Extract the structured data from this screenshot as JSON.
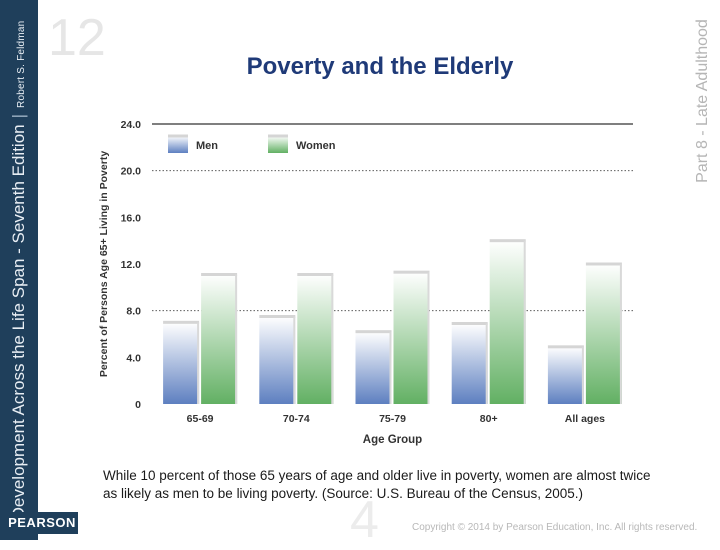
{
  "slide": {
    "title": "Poverty and the Elderly",
    "caption": "While 10 percent of those 65 years of age and older live in poverty, women are almost twice as likely as men to be living poverty. (Source: U.S. Bureau of the Census, 2005.)",
    "copyright": "Copyright © 2014 by Pearson Education, Inc. All rights reserved.",
    "book_title": "Development Across the Life Span - Seventh Edition",
    "author": "Robert S. Feldman",
    "part_label": "Part 8 - Late Adulthood",
    "publisher": "PEARSON",
    "chapter_number": "12"
  },
  "chart_data": {
    "type": "bar",
    "title": "",
    "xlabel": "Age Group",
    "ylabel": "Percent of Persons Age 65+ Living in Poverty",
    "ylim": [
      0,
      24
    ],
    "yticks": [
      0,
      4,
      8,
      12,
      16,
      20,
      24
    ],
    "ytick_labels": [
      "0",
      "4.0",
      "8.0",
      "12.0",
      "16.0",
      "20.0",
      "24.0"
    ],
    "categories": [
      "65-69",
      "70-74",
      "75-79",
      "80+",
      "All ages"
    ],
    "series": [
      {
        "name": "Men",
        "values": [
          7.0,
          7.5,
          6.2,
          6.9,
          4.9
        ]
      },
      {
        "name": "Women",
        "values": [
          11.1,
          11.1,
          11.3,
          14.0,
          12.0
        ]
      }
    ],
    "reference_lines": [
      20.0,
      8.0
    ],
    "legend_position": "top-left",
    "colors": {
      "men": "#a7b9dd",
      "women": "#b3dab2"
    }
  }
}
